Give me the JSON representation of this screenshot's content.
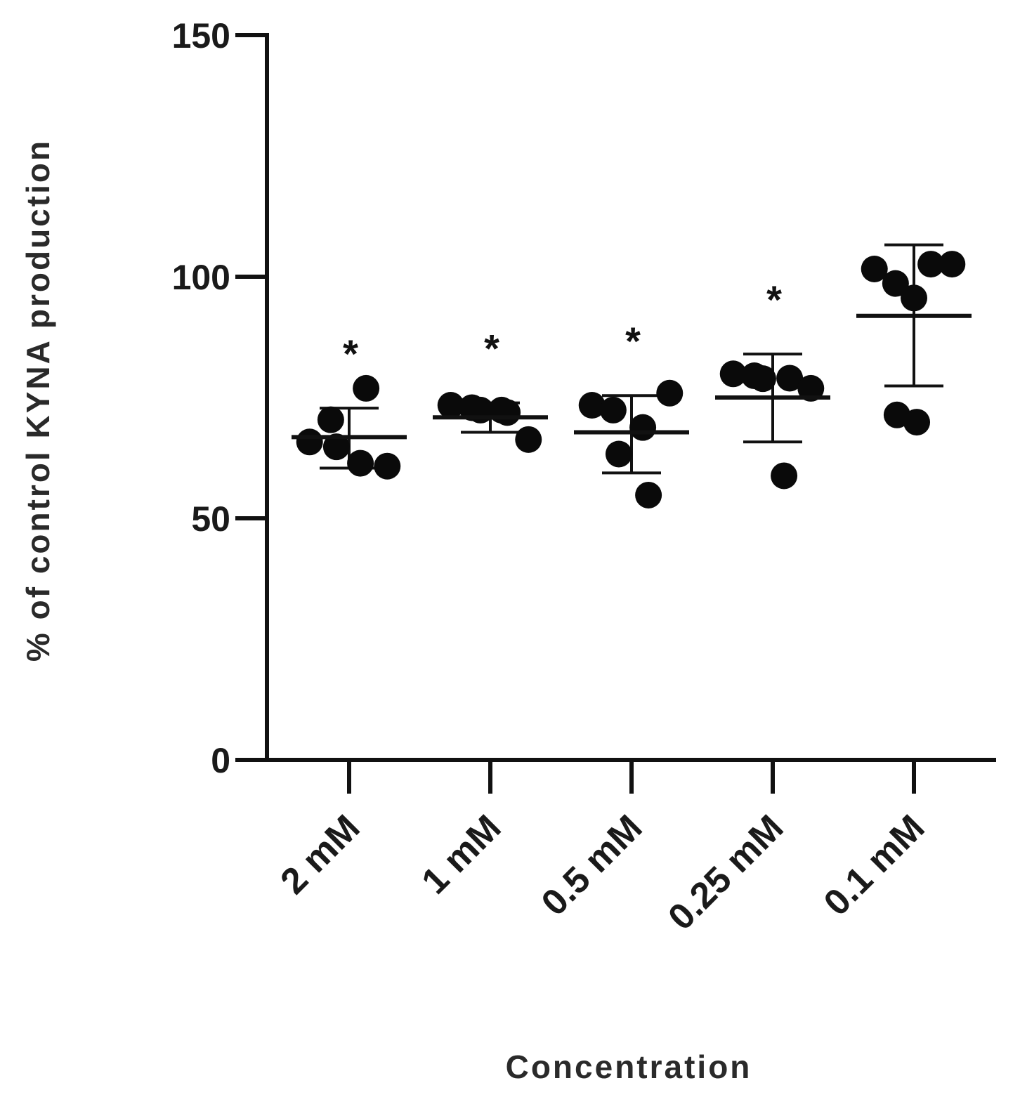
{
  "chart_data": {
    "type": "scatter",
    "xlabel": "Concentration",
    "ylabel": "% of control KYNA production",
    "ylim": [
      0,
      150
    ],
    "yticks": [
      0,
      50,
      100,
      150
    ],
    "categories": [
      "2 mM",
      "1 mM",
      "0.5 mM",
      "0.25 mM",
      "0.1 mM"
    ],
    "groups": [
      {
        "category": "2 mM",
        "mean": 66.8,
        "sd_low": 60.4,
        "sd_high": 72.8,
        "significance": "*",
        "points": [
          {
            "x": -0.28,
            "y": 65.8
          },
          {
            "x": -0.13,
            "y": 70.4
          },
          {
            "x": -0.09,
            "y": 64.8
          },
          {
            "x": 0.08,
            "y": 61.4
          },
          {
            "x": 0.12,
            "y": 76.9
          },
          {
            "x": 0.27,
            "y": 60.8
          }
        ]
      },
      {
        "category": "1 mM",
        "mean": 70.9,
        "sd_low": 67.8,
        "sd_high": 73.9,
        "significance": "*",
        "points": [
          {
            "x": -0.28,
            "y": 73.4
          },
          {
            "x": -0.13,
            "y": 72.9
          },
          {
            "x": -0.07,
            "y": 72.4
          },
          {
            "x": 0.08,
            "y": 72.4
          },
          {
            "x": 0.12,
            "y": 71.9
          },
          {
            "x": 0.27,
            "y": 66.3
          }
        ]
      },
      {
        "category": "0.5 mM",
        "mean": 67.8,
        "sd_low": 59.4,
        "sd_high": 75.4,
        "significance": "*",
        "points": [
          {
            "x": -0.28,
            "y": 73.4
          },
          {
            "x": -0.13,
            "y": 72.4
          },
          {
            "x": -0.09,
            "y": 63.3
          },
          {
            "x": 0.08,
            "y": 68.8
          },
          {
            "x": 0.12,
            "y": 54.8
          },
          {
            "x": 0.27,
            "y": 75.9
          }
        ]
      },
      {
        "category": "0.25 mM",
        "mean": 75.0,
        "sd_low": 65.8,
        "sd_high": 84.0,
        "significance": "*",
        "points": [
          {
            "x": -0.28,
            "y": 79.9
          },
          {
            "x": -0.13,
            "y": 79.5
          },
          {
            "x": -0.07,
            "y": 78.9
          },
          {
            "x": 0.08,
            "y": 58.8
          },
          {
            "x": 0.12,
            "y": 79.0
          },
          {
            "x": 0.27,
            "y": 76.9
          }
        ]
      },
      {
        "category": "0.1 mM",
        "mean": 91.9,
        "sd_low": 77.4,
        "sd_high": 106.6,
        "significance": "",
        "points": [
          {
            "x": -0.28,
            "y": 101.6
          },
          {
            "x": -0.13,
            "y": 98.6
          },
          {
            "x": -0.12,
            "y": 71.4
          },
          {
            "x": 0.0,
            "y": 95.6
          },
          {
            "x": 0.02,
            "y": 69.9
          },
          {
            "x": 0.12,
            "y": 102.6
          },
          {
            "x": 0.27,
            "y": 102.6
          }
        ]
      }
    ]
  }
}
